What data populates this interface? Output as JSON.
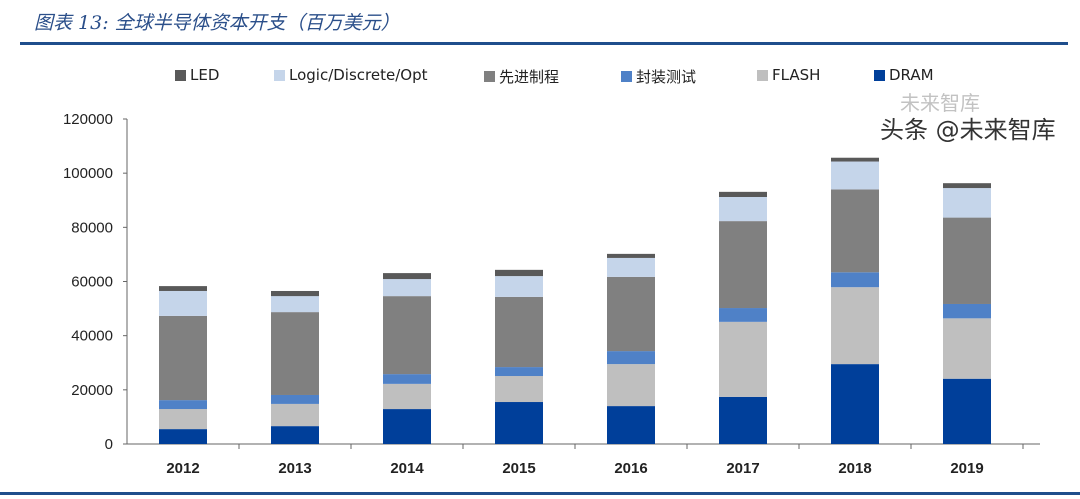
{
  "title": "图表 13:  全球半导体资本开支（百万美元）",
  "watermark": {
    "top": "未来智库",
    "bottom": "头条 @未来智库"
  },
  "chart_data": {
    "type": "bar",
    "stacked": true,
    "title": "图表 13:  全球半导体资本开支（百万美元）",
    "categories": [
      "2012",
      "2013",
      "2014",
      "2015",
      "2016",
      "2017",
      "2018",
      "2019"
    ],
    "yticks": [
      "0",
      "20000",
      "40000",
      "60000",
      "80000",
      "100000",
      "120000"
    ],
    "ylim": [
      0,
      120000
    ],
    "grid": false,
    "legend": "top",
    "series": [
      {
        "name": "DRAM",
        "color": "#003f9a",
        "values": [
          5500,
          6600,
          12900,
          15500,
          14000,
          17400,
          29500,
          24100
        ]
      },
      {
        "name": "FLASH",
        "color": "#bfbfbf",
        "values": [
          7400,
          8200,
          9300,
          9600,
          15500,
          27700,
          28400,
          22300
        ]
      },
      {
        "name": "封装测试",
        "color": "#4f81c7",
        "values": [
          3300,
          3300,
          3600,
          3300,
          4800,
          5100,
          5500,
          5300
        ]
      },
      {
        "name": "先进制程",
        "color": "#808080",
        "values": [
          31100,
          30600,
          28800,
          25900,
          27400,
          32100,
          30600,
          31900
        ]
      },
      {
        "name": "Logic/Discrete/Opt",
        "color": "#c5d5ea",
        "values": [
          9200,
          5900,
          6300,
          7700,
          7000,
          8900,
          10300,
          10900
        ]
      },
      {
        "name": "LED",
        "color": "#595959",
        "values": [
          1800,
          1900,
          2200,
          2300,
          1500,
          1900,
          1400,
          1800
        ]
      }
    ]
  }
}
